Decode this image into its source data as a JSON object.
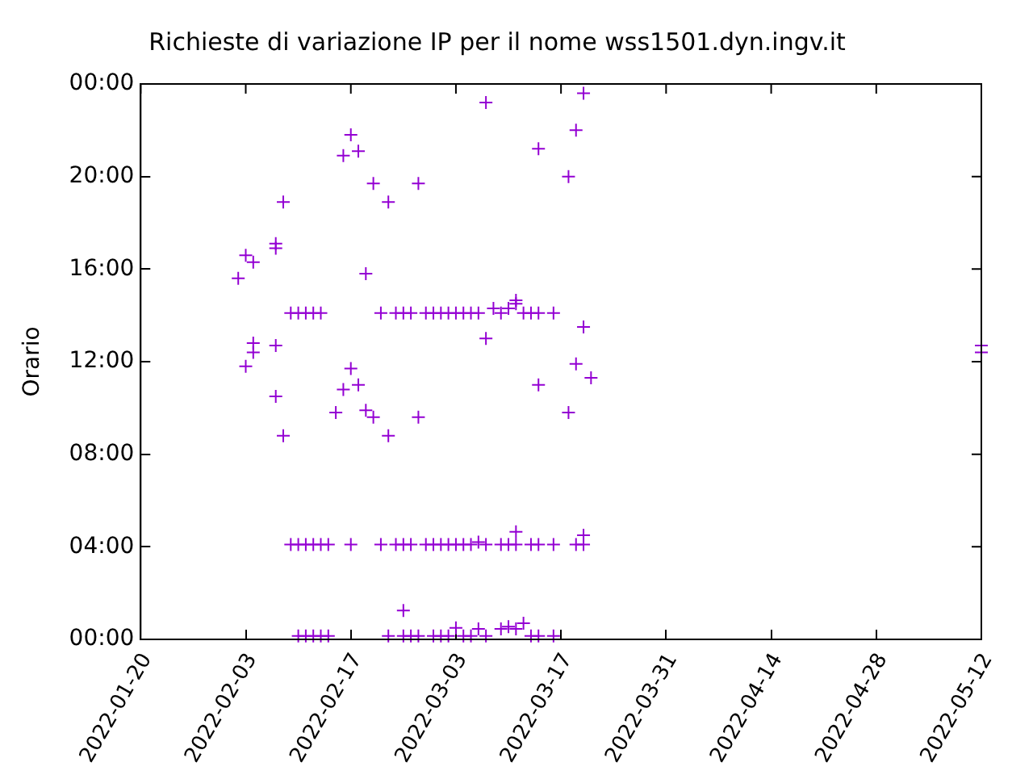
{
  "chart_data": {
    "type": "scatter",
    "title": "Richieste di variazione IP per il nome wss1501.dyn.ingv.it",
    "ylabel": "Orario",
    "xlim": [
      "2022-01-20",
      "2022-05-12"
    ],
    "xticks": [
      "2022-01-20",
      "2022-02-03",
      "2022-02-17",
      "2022-03-03",
      "2022-03-17",
      "2022-03-31",
      "2022-04-14",
      "2022-04-28",
      "2022-05-12"
    ],
    "ylim": [
      0,
      24
    ],
    "yticks": [
      {
        "value": 0,
        "label": "00:00"
      },
      {
        "value": 4,
        "label": "04:00"
      },
      {
        "value": 8,
        "label": "08:00"
      },
      {
        "value": 12,
        "label": "12:00"
      },
      {
        "value": 16,
        "label": "16:00"
      },
      {
        "value": 20,
        "label": "20:00"
      },
      {
        "value": 24,
        "label": "00:00"
      }
    ],
    "grid": false,
    "legend": false,
    "marker": "cross",
    "series": [
      {
        "color": "#9400d3",
        "x": [
          "2022-02-02",
          "2022-02-03",
          "2022-02-04",
          "2022-02-03",
          "2022-02-04",
          "2022-02-04",
          "2022-02-07",
          "2022-02-07",
          "2022-02-08",
          "2022-02-07",
          "2022-02-07",
          "2022-02-08",
          "2022-02-09",
          "2022-02-10",
          "2022-02-11",
          "2022-02-12",
          "2022-02-13",
          "2022-02-09",
          "2022-02-10",
          "2022-02-11",
          "2022-02-12",
          "2022-02-13",
          "2022-02-14",
          "2022-02-10",
          "2022-02-11",
          "2022-02-12",
          "2022-02-13",
          "2022-02-14",
          "2022-02-15",
          "2022-02-16",
          "2022-02-16",
          "2022-02-17",
          "2022-02-17",
          "2022-02-17",
          "2022-02-18",
          "2022-02-18",
          "2022-02-19",
          "2022-02-19",
          "2022-02-20",
          "2022-02-20",
          "2022-02-21",
          "2022-02-21",
          "2022-02-22",
          "2022-02-22",
          "2022-02-22",
          "2022-02-23",
          "2022-02-23",
          "2022-02-24",
          "2022-02-24",
          "2022-02-24",
          "2022-02-24",
          "2022-02-25",
          "2022-02-25",
          "2022-02-25",
          "2022-02-26",
          "2022-02-26",
          "2022-02-26",
          "2022-02-27",
          "2022-02-27",
          "2022-02-28",
          "2022-02-28",
          "2022-02-28",
          "2022-03-01",
          "2022-03-01",
          "2022-03-01",
          "2022-03-02",
          "2022-03-02",
          "2022-03-02",
          "2022-03-03",
          "2022-03-03",
          "2022-03-03",
          "2022-03-04",
          "2022-03-04",
          "2022-03-04",
          "2022-03-05",
          "2022-03-05",
          "2022-03-05",
          "2022-03-06",
          "2022-03-06",
          "2022-03-06",
          "2022-03-07",
          "2022-03-07",
          "2022-03-07",
          "2022-03-07",
          "2022-03-08",
          "2022-03-09",
          "2022-03-09",
          "2022-03-09",
          "2022-03-10",
          "2022-03-10",
          "2022-03-10",
          "2022-03-11",
          "2022-03-11",
          "2022-03-11",
          "2022-03-11",
          "2022-03-11",
          "2022-03-12",
          "2022-03-12",
          "2022-03-13",
          "2022-03-13",
          "2022-03-13",
          "2022-03-14",
          "2022-03-14",
          "2022-03-14",
          "2022-03-14",
          "2022-03-14",
          "2022-03-16",
          "2022-03-16",
          "2022-03-16",
          "2022-03-18",
          "2022-03-18",
          "2022-03-19",
          "2022-03-19",
          "2022-03-19",
          "2022-03-20",
          "2022-03-20",
          "2022-03-20",
          "2022-03-20",
          "2022-03-21",
          "2022-05-12",
          "2022-05-12"
        ],
        "values": [
          15.6,
          16.6,
          16.3,
          11.8,
          12.4,
          12.8,
          16.9,
          17.1,
          18.9,
          12.7,
          10.5,
          8.8,
          14.1,
          14.1,
          14.1,
          14.1,
          14.1,
          4.1,
          4.1,
          4.1,
          4.1,
          4.1,
          4.1,
          0.15,
          0.15,
          0.15,
          0.15,
          0.15,
          9.8,
          10.8,
          20.9,
          21.8,
          11.7,
          4.1,
          21.1,
          11.0,
          15.8,
          9.9,
          19.7,
          9.6,
          14.1,
          4.1,
          18.9,
          8.8,
          0.15,
          14.1,
          4.1,
          14.1,
          4.1,
          1.25,
          0.15,
          14.1,
          4.1,
          0.15,
          19.7,
          9.6,
          0.15,
          14.1,
          4.1,
          14.1,
          4.1,
          0.15,
          14.1,
          4.1,
          0.15,
          14.1,
          4.1,
          0.15,
          14.1,
          4.1,
          0.5,
          14.1,
          4.1,
          0.15,
          14.1,
          4.1,
          0.15,
          14.1,
          4.2,
          0.45,
          23.2,
          13.0,
          0.15,
          4.1,
          14.3,
          14.1,
          4.1,
          0.45,
          14.3,
          4.1,
          0.55,
          14.5,
          14.65,
          4.1,
          4.65,
          0.45,
          14.1,
          0.7,
          14.1,
          4.1,
          0.15,
          21.2,
          11.0,
          14.1,
          4.1,
          0.15,
          14.1,
          4.1,
          0.15,
          20.0,
          9.8,
          22.0,
          11.9,
          4.1,
          23.6,
          13.5,
          4.1,
          4.5,
          11.3,
          12.4,
          12.7
        ]
      }
    ]
  }
}
